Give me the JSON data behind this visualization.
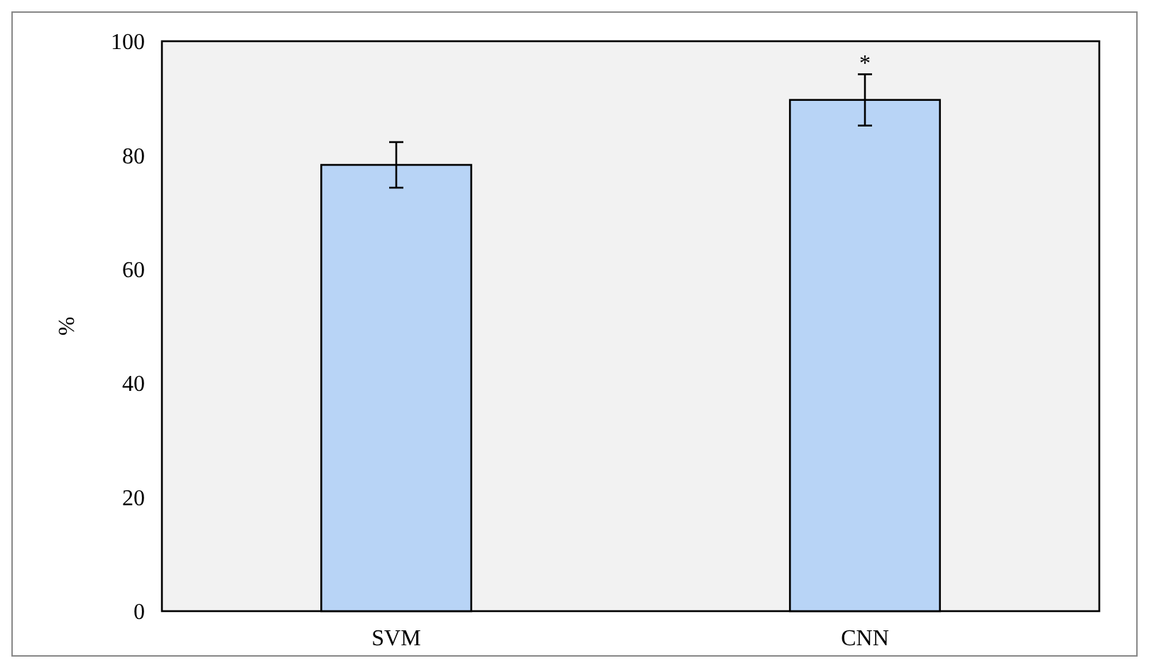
{
  "chart_data": {
    "type": "bar",
    "ylabel": "%",
    "categories": [
      "SVM",
      "CNN"
    ],
    "values": [
      78.3,
      89.7
    ],
    "errors": [
      4,
      4.5
    ],
    "color": "#b8d4f6",
    "ylim": [
      0,
      100
    ],
    "yticks": [
      0,
      20,
      40,
      60,
      80,
      100
    ],
    "grid": false,
    "annotations": [
      {
        "text": "*",
        "x": "CNN",
        "y": 94.2
      }
    ]
  }
}
